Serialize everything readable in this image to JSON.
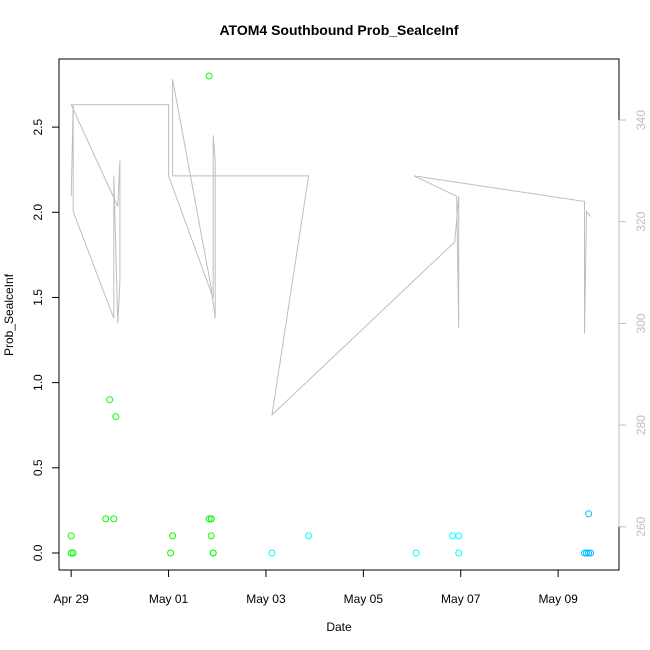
{
  "chart_data": {
    "type": "scatter",
    "title": "ATOM4 Southbound Prob_SealceInf",
    "xlabel": "Date",
    "ylabel": "Prob_SealceInf",
    "xlim": [
      "2023-04-28 18:00",
      "2023-05-10 06:00"
    ],
    "ylim": [
      -0.1,
      2.9
    ],
    "y2lim": [
      251.5,
      352
    ],
    "x_ticks": [
      {
        "date": "2023-04-29",
        "label": "Apr 29"
      },
      {
        "date": "2023-05-01",
        "label": "May 01"
      },
      {
        "date": "2023-05-03",
        "label": "May 03"
      },
      {
        "date": "2023-05-05",
        "label": "May 05"
      },
      {
        "date": "2023-05-07",
        "label": "May 07"
      },
      {
        "date": "2023-05-09",
        "label": "May 09"
      }
    ],
    "y_ticks": [
      {
        "value": 0.0,
        "label": "0.0"
      },
      {
        "value": 0.5,
        "label": "0.5"
      },
      {
        "value": 1.0,
        "label": "1.0"
      },
      {
        "value": 1.5,
        "label": "1.5"
      },
      {
        "value": 2.0,
        "label": "2.0"
      },
      {
        "value": 2.5,
        "label": "2.5"
      }
    ],
    "y2_ticks": [
      {
        "value": 260,
        "label": "260"
      },
      {
        "value": 280,
        "label": "280"
      },
      {
        "value": 300,
        "label": "300"
      },
      {
        "value": 320,
        "label": "320"
      },
      {
        "value": 340,
        "label": "340"
      }
    ],
    "line_color": "#bebebe",
    "line_series": {
      "x": [
        "2023-04-29 00:00",
        "2023-04-29 01:00",
        "2023-04-29 01:00",
        "2023-04-29 21:00",
        "2023-04-29 21:00",
        "2023-04-29 23:00",
        "2023-04-30 00:00",
        "2023-04-30 00:00",
        "2023-04-29 23:00",
        "2023-04-29 00:00",
        "2023-05-01 00:00",
        "2023-05-01 00:00",
        "2023-05-01 22:00",
        "2023-05-01 22:00",
        "2023-05-01 23:00",
        "2023-05-01 23:00",
        "2023-05-01 21:00",
        "2023-05-01 02:00",
        "2023-05-01 02:00",
        "2023-05-03 21:00",
        "2023-05-03 03:00",
        "2023-05-06 21:00",
        "2023-05-06 23:00",
        "2023-05-06 23:00",
        "2023-05-06 22:00",
        "2023-05-06 01:00",
        "2023-05-09 13:00",
        "2023-05-09 13:00",
        "2023-05-09 14:00",
        "2023-05-09 16:00"
      ],
      "y": [
        325,
        343,
        322,
        301,
        329,
        300,
        308,
        332,
        323,
        343,
        343,
        329,
        305,
        337,
        332,
        301,
        307,
        348,
        329,
        329,
        282,
        316,
        325,
        299,
        325,
        329,
        324,
        298,
        322,
        321
      ]
    },
    "point_series": [
      {
        "color": "#00ff00",
        "x": [
          "2023-04-29 00:00",
          "2023-04-29 00:00",
          "2023-04-29 01:00",
          "2023-04-29 17:00",
          "2023-04-29 19:00",
          "2023-04-29 21:00",
          "2023-04-29 22:00",
          "2023-05-01 01:00",
          "2023-05-01 02:00",
          "2023-05-01 20:00",
          "2023-05-01 20:00",
          "2023-05-01 21:00",
          "2023-05-01 21:00",
          "2023-05-01 21:00",
          "2023-05-01 22:00",
          "2023-05-01 22:00"
        ],
        "y": [
          0.0,
          0.1,
          0.0,
          0.2,
          0.9,
          0.2,
          0.8,
          0.0,
          0.1,
          2.8,
          0.2,
          0.2,
          0.2,
          0.1,
          0.0,
          0.0
        ]
      },
      {
        "color": "#00ffff",
        "x": [
          "2023-05-03 03:00",
          "2023-05-03 21:00",
          "2023-05-06 02:00",
          "2023-05-06 20:00",
          "2023-05-06 23:00",
          "2023-05-06 23:00"
        ],
        "y": [
          0.0,
          0.1,
          0.0,
          0.1,
          0.1,
          0.0
        ]
      },
      {
        "color": "#00bfff",
        "x": [
          "2023-05-09 13:00",
          "2023-05-09 14:00",
          "2023-05-09 15:00",
          "2023-05-09 15:00",
          "2023-05-09 16:00"
        ],
        "y": [
          0.0,
          0.0,
          0.0,
          0.23,
          0.0
        ]
      }
    ],
    "grid": false
  }
}
